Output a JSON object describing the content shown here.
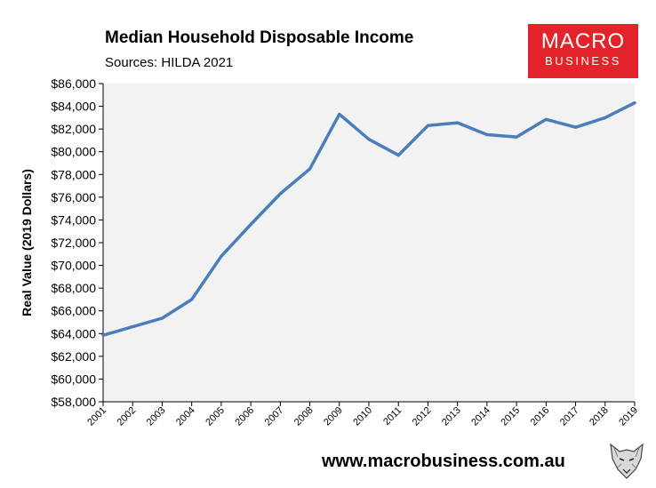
{
  "header": {
    "title": "Median Household Disposable Income",
    "subtitle": "Sources: HILDA 2021"
  },
  "logo": {
    "line1": "MACRO",
    "line2": "BUSINESS",
    "color": "#e3222a"
  },
  "footer": {
    "url": "www.macrobusiness.com.au"
  },
  "chart_data": {
    "type": "line",
    "title": "Median Household Disposable Income",
    "subtitle": "Sources: HILDA 2021",
    "xlabel": "",
    "ylabel": "Real Value (2019 Dollars)",
    "categories": [
      "2001",
      "2002",
      "2003",
      "2004",
      "2005",
      "2006",
      "2007",
      "2008",
      "2009",
      "2010",
      "2011",
      "2012",
      "2013",
      "2014",
      "2015",
      "2016",
      "2017",
      "2018",
      "2019"
    ],
    "y_ticks": [
      "$58,000",
      "$60,000",
      "$62,000",
      "$64,000",
      "$66,000",
      "$68,000",
      "$70,000",
      "$72,000",
      "$74,000",
      "$76,000",
      "$78,000",
      "$80,000",
      "$82,000",
      "$84,000",
      "$86,000"
    ],
    "ylim": [
      58000,
      86000
    ],
    "series": [
      {
        "color": "#4a7ebb",
        "values": [
          63850,
          64600,
          65350,
          67000,
          70800,
          73600,
          76300,
          78500,
          83300,
          81100,
          79700,
          82300,
          82550,
          81500,
          81300,
          82850,
          82150,
          83000,
          84300
        ]
      }
    ],
    "grid": false,
    "legend": "none",
    "plot_background": "#f2f2f2"
  }
}
